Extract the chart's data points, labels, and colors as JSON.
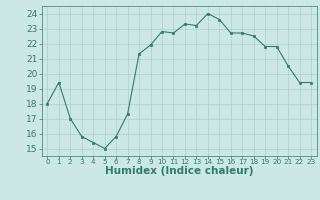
{
  "x": [
    0,
    1,
    2,
    3,
    4,
    5,
    6,
    7,
    8,
    9,
    10,
    11,
    12,
    13,
    14,
    15,
    16,
    17,
    18,
    19,
    20,
    21,
    22,
    23
  ],
  "y": [
    18.0,
    19.4,
    17.0,
    15.8,
    15.4,
    15.0,
    15.8,
    17.3,
    21.3,
    21.9,
    22.8,
    22.7,
    23.3,
    23.2,
    24.0,
    23.6,
    22.7,
    22.7,
    22.5,
    21.8,
    21.8,
    20.5,
    19.4,
    19.4
  ],
  "line_color": "#2e7d6e",
  "marker": "s",
  "marker_size": 2.0,
  "bg_color": "#cce8e4",
  "grid_color": "#b0ceca",
  "xlabel": "Humidex (Indice chaleur)",
  "xlim": [
    -0.5,
    23.5
  ],
  "ylim": [
    14.5,
    24.5
  ],
  "yticks": [
    15,
    16,
    17,
    18,
    19,
    20,
    21,
    22,
    23,
    24
  ],
  "xticks": [
    0,
    1,
    2,
    3,
    4,
    5,
    6,
    7,
    8,
    9,
    10,
    11,
    12,
    13,
    14,
    15,
    16,
    17,
    18,
    19,
    20,
    21,
    22,
    23
  ],
  "tick_color": "#2e7d6e",
  "label_color": "#2e7d6e",
  "font_size_ytick": 6.5,
  "font_size_xtick": 5.2,
  "font_size_label": 7.5
}
